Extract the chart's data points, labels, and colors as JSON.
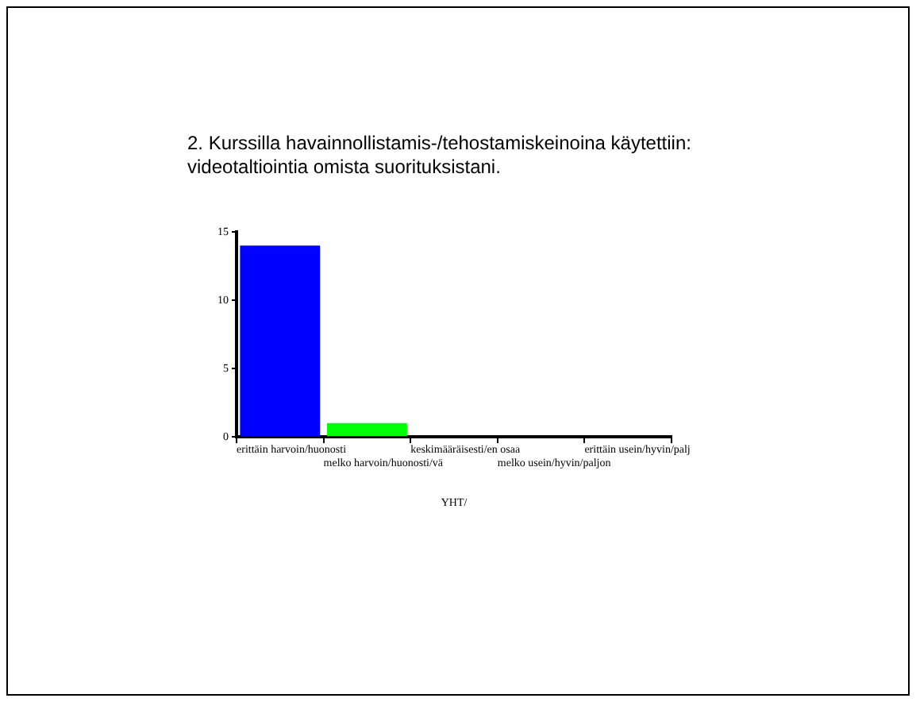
{
  "chart_data": {
    "type": "bar",
    "title": "2. Kurssilla havainnollistamis-/tehostamiskeinoina käytettiin:\nvideotaltiointia omista suorituksistani.",
    "xlabel": "YHT/",
    "categories": [
      "erittäin harvoin/huonosti",
      "melko harvoin/huonosti/vä",
      "keskimääräisesti/en osaa",
      "melko usein/hyvin/paljon",
      "erittäin usein/hyvin/palj"
    ],
    "values": [
      14,
      1,
      0,
      0,
      0
    ],
    "colors": [
      "#0000ff",
      "#00ff00",
      null,
      null,
      null
    ],
    "ylim": [
      0,
      15
    ],
    "yticks": [
      0,
      5,
      10,
      15
    ]
  }
}
